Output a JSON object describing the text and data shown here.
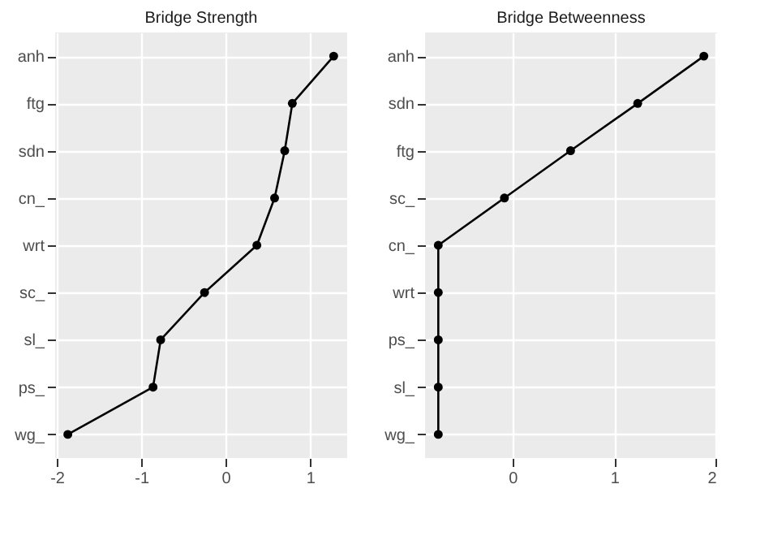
{
  "chart_data": [
    {
      "type": "line",
      "title": "Bridge Strength",
      "categories": [
        "anh",
        "ftg",
        "sdn",
        "cn_",
        "wrt",
        "sc_",
        "sl_",
        "ps_",
        "wg_"
      ],
      "series": [
        {
          "color": "#000000",
          "values": [
            1.28,
            0.79,
            0.7,
            0.58,
            0.37,
            -0.25,
            -0.77,
            -0.86,
            -1.87
          ]
        }
      ],
      "orientation": "horizontal",
      "xlim": [
        -2.02,
        1.44
      ],
      "xticks": [
        -2,
        -1,
        0,
        1
      ],
      "grid": true,
      "marker": "circle",
      "line_style": "solid"
    },
    {
      "type": "line",
      "title": "Bridge Betweenness",
      "categories": [
        "anh",
        "sdn",
        "ftg",
        "sc_",
        "cn_",
        "wrt",
        "ps_",
        "sl_",
        "wg_"
      ],
      "series": [
        {
          "color": "#000000",
          "values": [
            1.88,
            1.23,
            0.57,
            -0.08,
            -0.73,
            -0.73,
            -0.73,
            -0.73,
            -0.73
          ]
        }
      ],
      "orientation": "horizontal",
      "xlim": [
        -0.86,
        2.01
      ],
      "xticks": [
        0,
        1,
        2
      ],
      "grid": true,
      "marker": "circle",
      "line_style": "solid"
    }
  ]
}
